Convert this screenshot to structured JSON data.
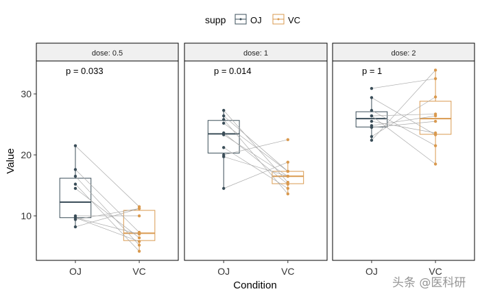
{
  "chart_data": {
    "type": "boxplot",
    "xlabel": "Condition",
    "ylabel": "Value",
    "ylim": [
      2.7,
      35.4
    ],
    "yticks": [
      10,
      20,
      30
    ],
    "grid": false,
    "legend": {
      "title": "supp",
      "position": "top",
      "entries": [
        "OJ",
        "VC"
      ]
    },
    "categories": [
      "OJ",
      "VC"
    ],
    "colors": {
      "OJ": "#3A4D58",
      "VC": "#D9994E",
      "pair_line": "#AAAAAA",
      "strip_bg": "#F0F0F0"
    },
    "facets": [
      {
        "label": "dose: 0.5",
        "p_label": "p = 0.033",
        "OJ": [
          15.2,
          21.5,
          17.6,
          9.7,
          14.5,
          10,
          8.2,
          9.4,
          16.5,
          9.7
        ],
        "VC": [
          4.2,
          11.5,
          7.3,
          5.8,
          6.4,
          10,
          11.2,
          11.2,
          5.2,
          7
        ]
      },
      {
        "label": "dose: 1",
        "p_label": "p = 0.014",
        "OJ": [
          19.7,
          23.3,
          23.6,
          26.4,
          20,
          25.2,
          25.8,
          21.2,
          14.5,
          27.3
        ],
        "VC": [
          16.5,
          16.5,
          15.2,
          17.3,
          22.5,
          17.3,
          13.6,
          14.5,
          18.8,
          15.5
        ]
      },
      {
        "label": "dose: 2",
        "p_label": "p = 1",
        "OJ": [
          25.5,
          26.4,
          22.4,
          24.5,
          24.8,
          30.9,
          26.4,
          27.3,
          29.4,
          23
        ],
        "VC": [
          23.6,
          18.5,
          33.9,
          25.5,
          26.4,
          32.5,
          26.7,
          21.5,
          23.3,
          29.5
        ]
      }
    ]
  },
  "watermark": "头条 @医科研"
}
